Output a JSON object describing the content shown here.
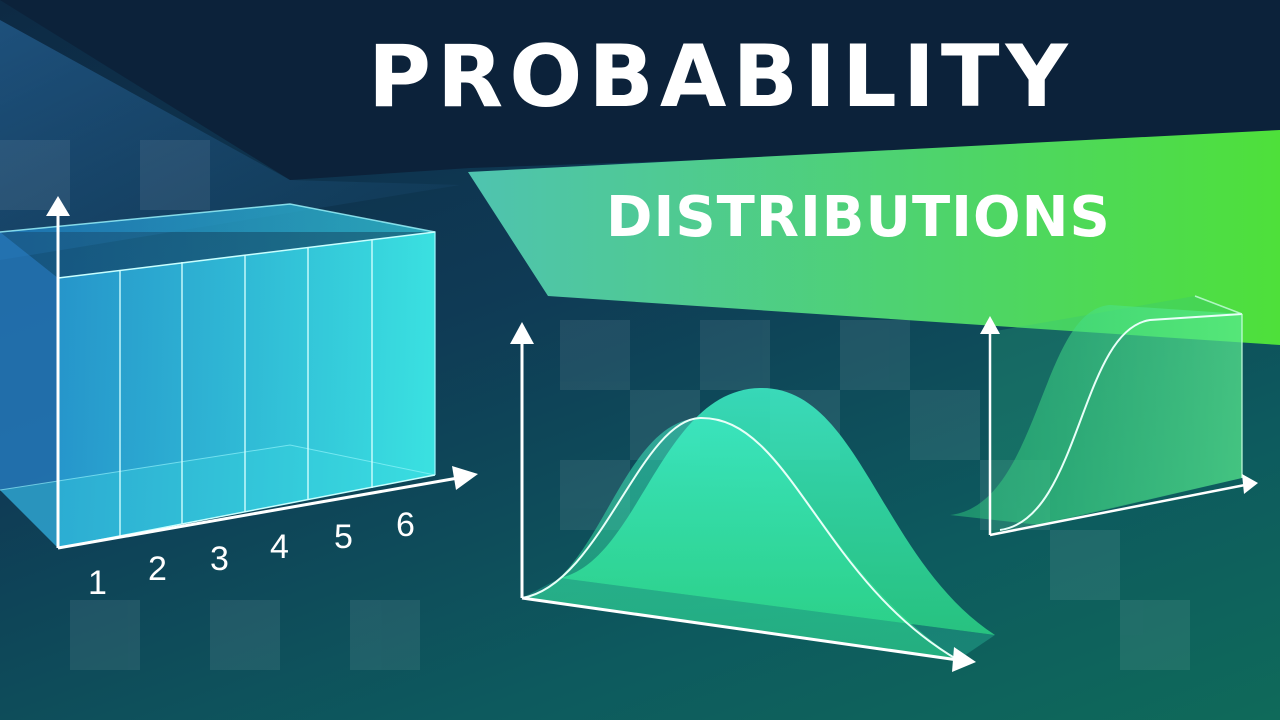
{
  "title": "PROBABILITY",
  "subtitle": "DISTRIBUTIONS",
  "uniform_chart": {
    "x_ticks": [
      "1",
      "2",
      "3",
      "4",
      "5",
      "6"
    ]
  },
  "colors": {
    "background_dark": "#0d2a44",
    "background_teal": "#0f6a5a",
    "banner_start": "#4fc3b0",
    "banner_end": "#4ee03a",
    "box_cyan": "#3ff0f0",
    "curve_green": "#35f0b0",
    "axis_white": "#ffffff"
  },
  "icons": [
    "uniform-distribution-box",
    "normal-distribution-curve",
    "cumulative-distribution-curve"
  ]
}
